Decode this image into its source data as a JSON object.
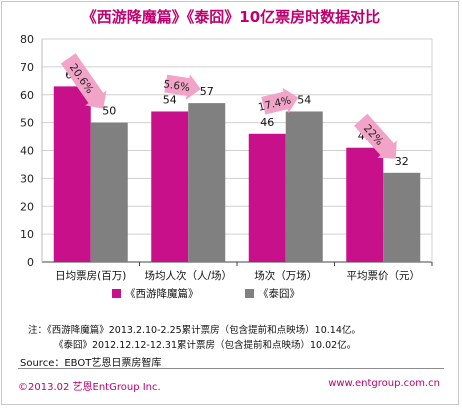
{
  "title": "《西游降魔篇》《泰囧》10亿票房时数据对比",
  "chart_data": {
    "type": "bar",
    "categories": [
      "日均票房(百万)",
      "场均人次（人/场）",
      "场次（万场）",
      "平均票价（元）"
    ],
    "series": [
      {
        "name": "《西游降魔篇》",
        "values": [
          63,
          54,
          46,
          41
        ],
        "color": "#c8108a"
      },
      {
        "name": "《泰囧》",
        "values": [
          50,
          57,
          54,
          32
        ],
        "color": "#808080"
      }
    ],
    "annotations": [
      "20.6%",
      "5.6%",
      "17.4%",
      "22%"
    ],
    "ylim": [
      0,
      80
    ],
    "yticks": [
      0,
      10,
      20,
      30,
      40,
      50,
      60,
      70,
      80
    ],
    "grid": true,
    "legend_position": "bottom"
  },
  "notes": {
    "line1": "注：《西游降魔篇》2013.2.10-2.25累计票房（包含提前和点映场）10.14亿。",
    "line2": "《泰囧》2012.12.12-12.31累计票房（包含提前和点映场）10.02亿。"
  },
  "source": "Source：EBOT艺恩日票房智库",
  "footer": {
    "copyright": "©2013.02 艺恩EntGroup Inc.",
    "website": "www.entgroup.com.cn"
  },
  "colors": {
    "accent": "#c0006f",
    "arrow": "#f2a4c8"
  }
}
